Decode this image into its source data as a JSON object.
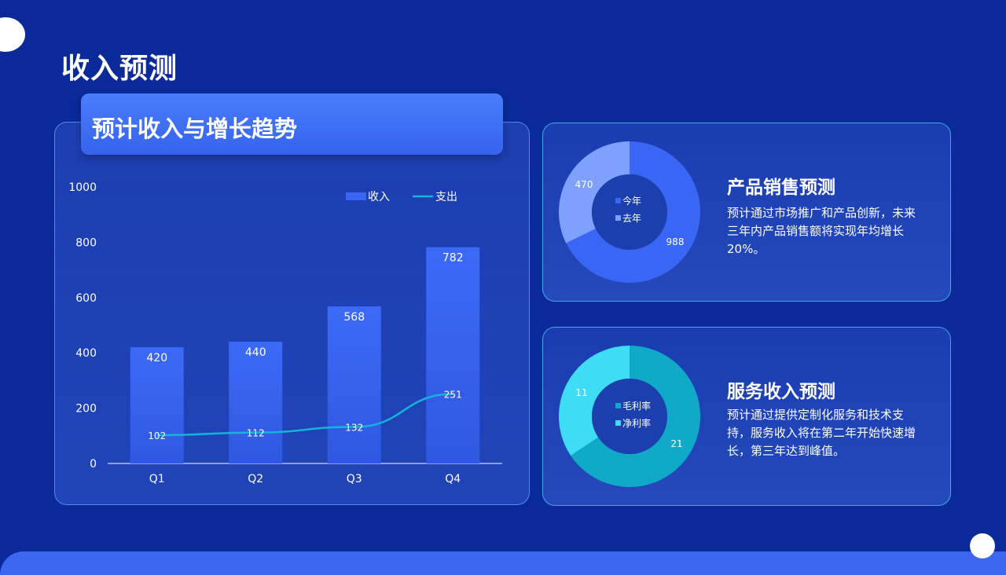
{
  "page": {
    "title": "收入预测"
  },
  "chart_section": {
    "heading": "预计收入与增长趋势"
  },
  "chart_data": [
    {
      "type": "bar",
      "categories": [
        "Q1",
        "Q2",
        "Q3",
        "Q4"
      ],
      "series": [
        {
          "name": "收入",
          "type": "bar",
          "values": [
            420,
            440,
            568,
            782
          ],
          "color": "#3a66f5"
        },
        {
          "name": "支出",
          "type": "line",
          "values": [
            102,
            112,
            132,
            251
          ],
          "color": "#13b5d8"
        }
      ],
      "ylim": [
        0,
        1000
      ],
      "yticks": [
        0,
        200,
        400,
        600,
        800,
        1000
      ],
      "legend": "top-right",
      "grid": false
    },
    {
      "type": "pie",
      "donut": true,
      "labels": [
        "今年",
        "去年"
      ],
      "values": [
        988,
        470
      ],
      "colors": [
        "#3a66f5",
        "#7ea0ff"
      ]
    },
    {
      "type": "pie",
      "donut": true,
      "labels": [
        "毛利率",
        "净利率"
      ],
      "values": [
        21,
        11
      ],
      "colors": [
        "#10aac8",
        "#3fdcf6"
      ]
    }
  ],
  "product_card": {
    "title": "产品销售预测",
    "text": "预计通过市场推广和产品创新，未来三年内产品销售额将实现年均增长20%。"
  },
  "service_card": {
    "title": "服务收入预测",
    "text": "预计通过提供定制化服务和技术支持，服务收入将在第二年开始快速增长，第三年达到峰值。"
  }
}
